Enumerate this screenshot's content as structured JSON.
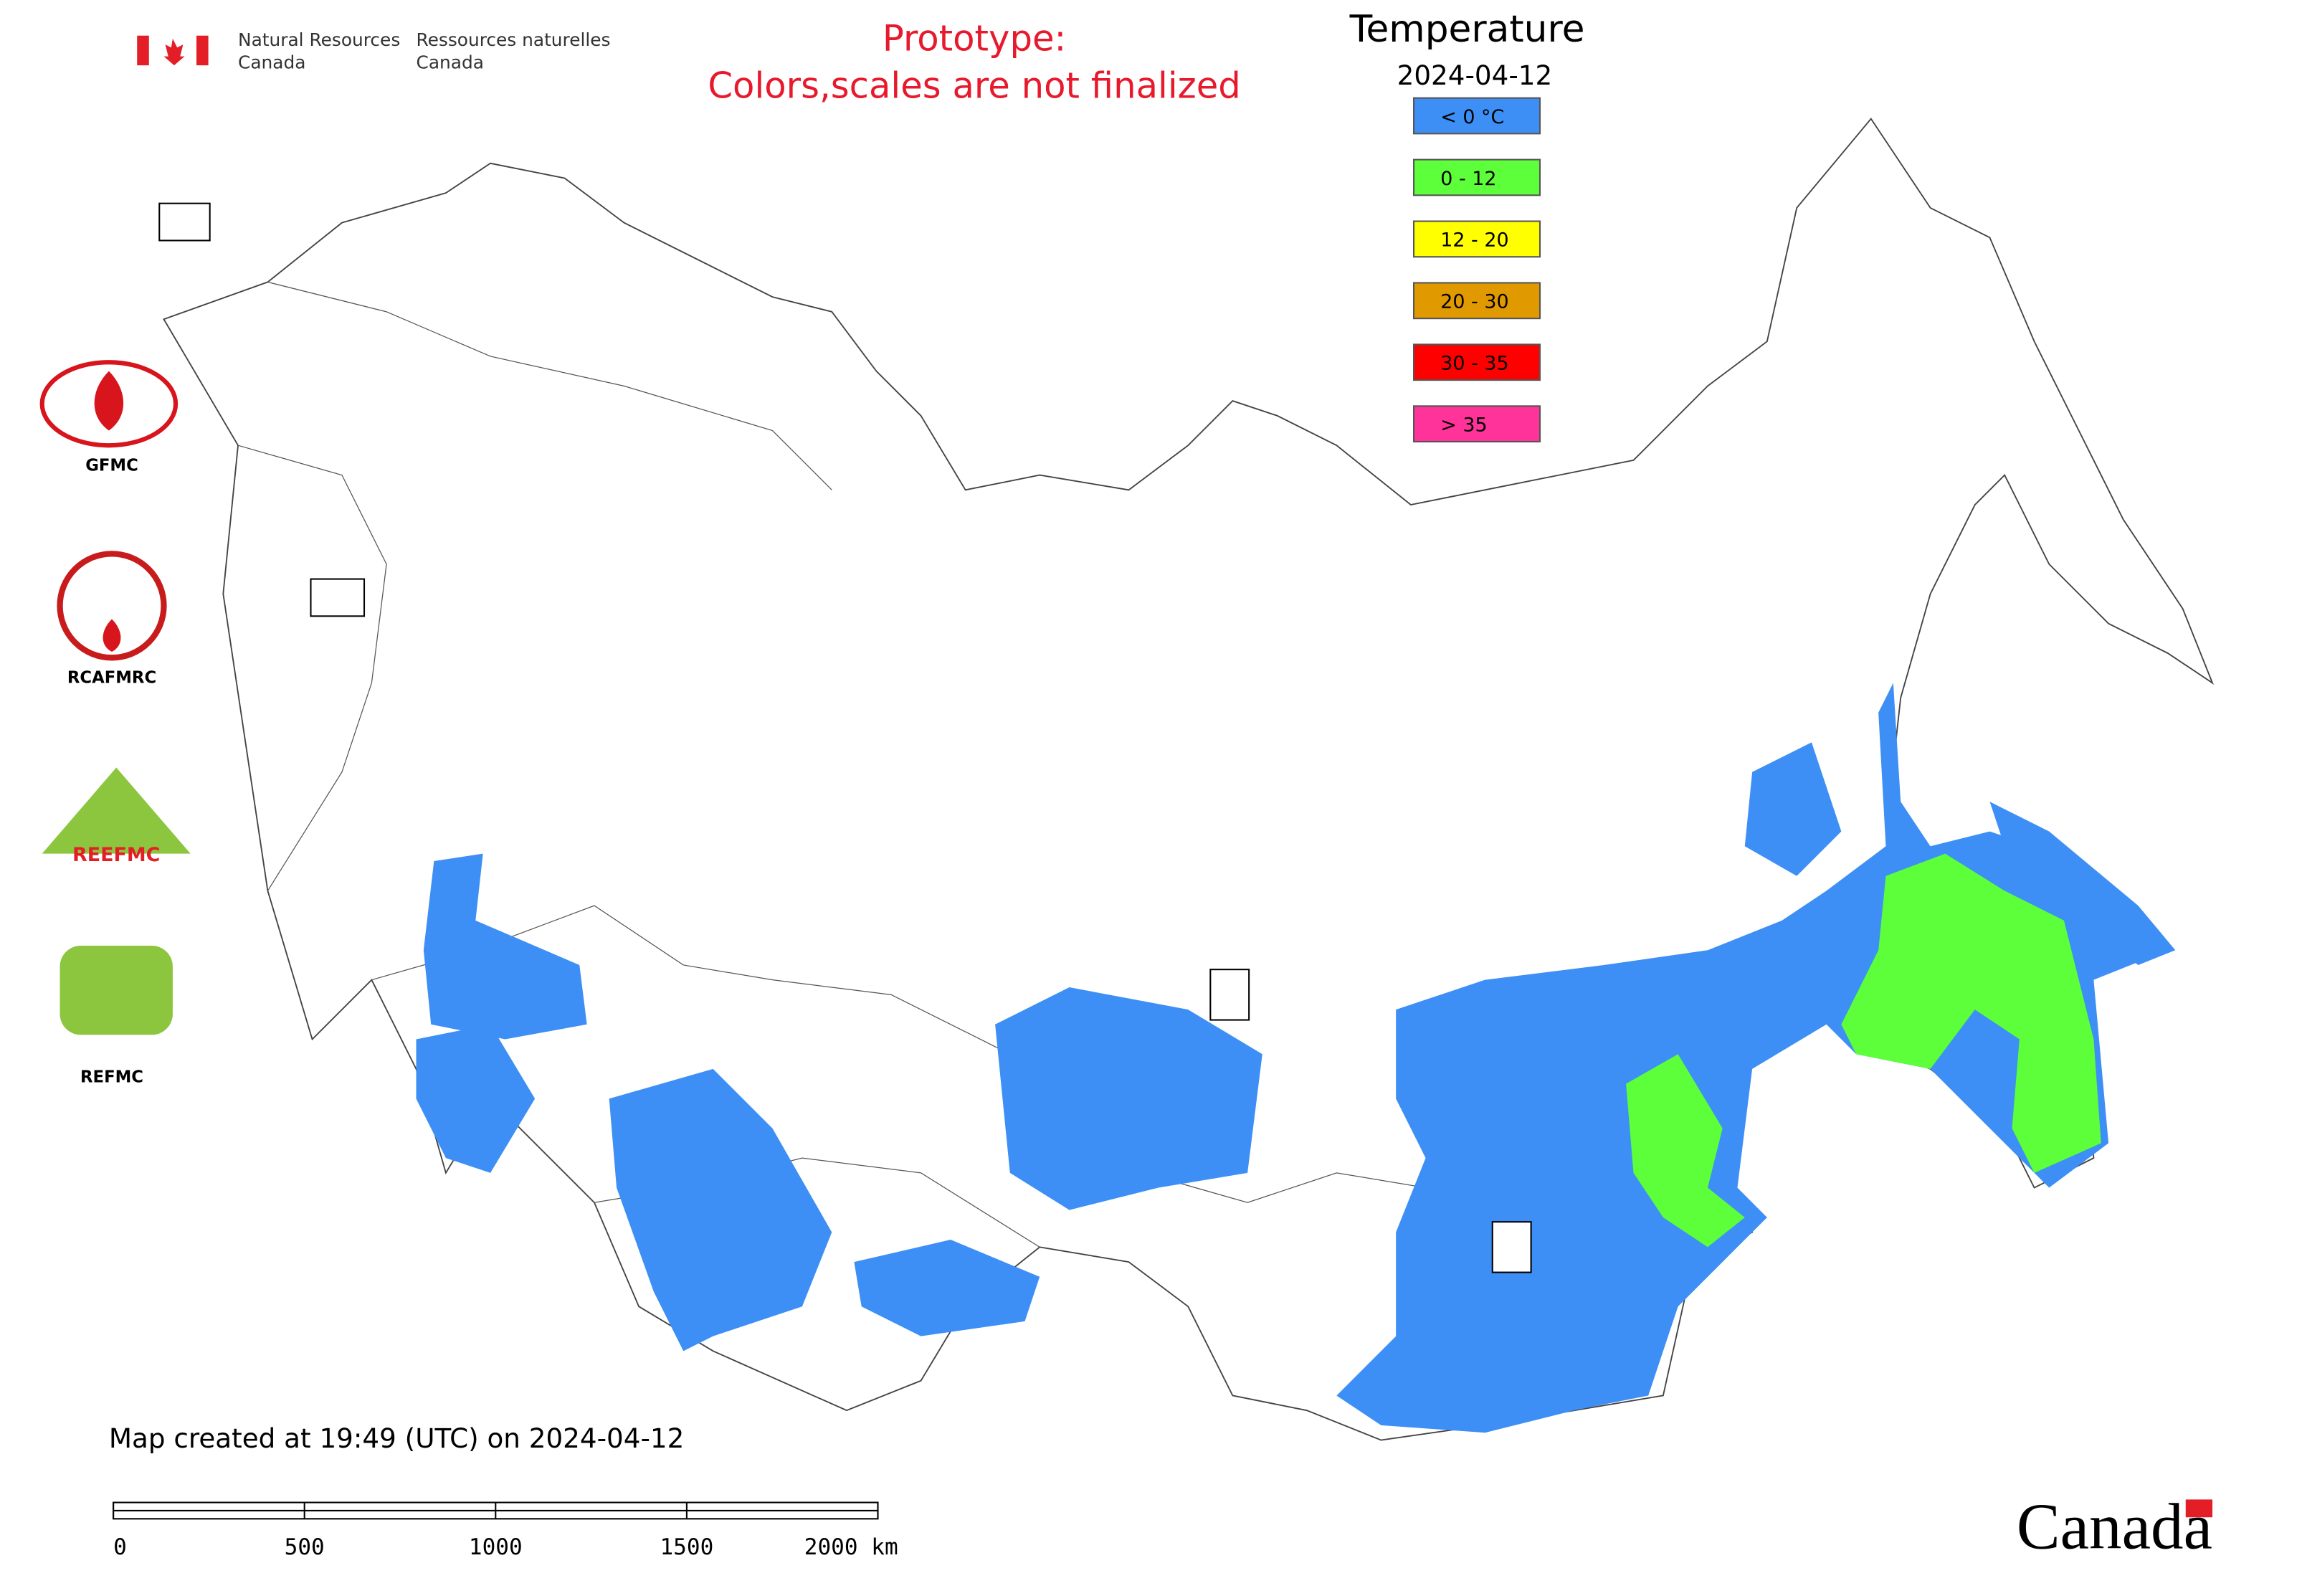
{
  "header": {
    "agency_en_1": "Natural Resources",
    "agency_en_2": "Canada",
    "agency_fr_1": "Ressources naturelles",
    "agency_fr_2": "Canada"
  },
  "notice": [
    "Prototype:",
    "Colors,scales are not finalized"
  ],
  "legend": {
    "title": "Temperature",
    "date": "2024-04-12",
    "items": [
      {
        "label": "< 0 °C",
        "color": "#3d8ff5"
      },
      {
        "label": "0 - 12",
        "color": "#5cff3a"
      },
      {
        "label": "12 - 20",
        "color": "#ffff00"
      },
      {
        "label": "20 - 30",
        "color": "#e09a00"
      },
      {
        "label": "30 - 35",
        "color": "#ff0000"
      },
      {
        "label": "> 35",
        "color": "#ff3399"
      }
    ]
  },
  "logos": [
    "GFMC",
    "RCAFMRC",
    "REEFMC",
    "REFMC"
  ],
  "footer": "Map created at 19:49 (UTC) on 2024-04-12",
  "scale_bar": {
    "labels": [
      "0",
      "500",
      "1000",
      "1500",
      "2000 km"
    ]
  },
  "wordmark": "Canada"
}
